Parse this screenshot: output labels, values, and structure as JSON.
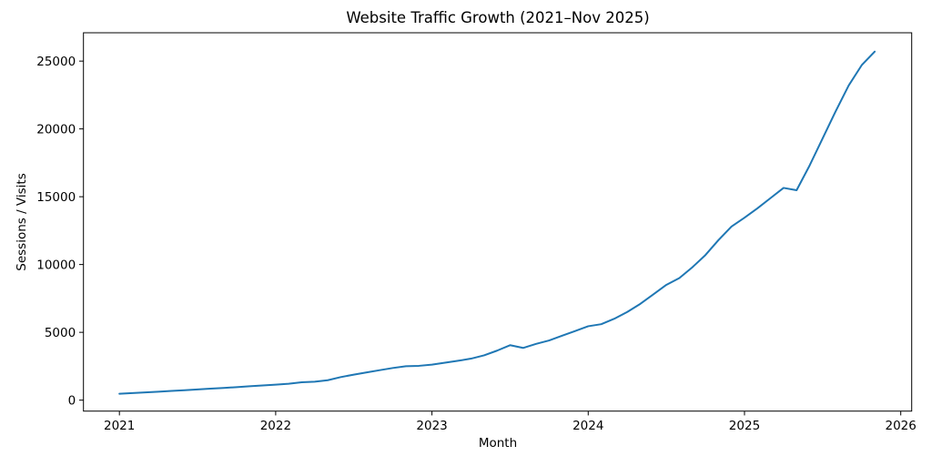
{
  "chart_data": {
    "type": "line",
    "title": "Website Traffic Growth (2021–Nov 2025)",
    "xlabel": "Month",
    "ylabel": "Sessions / Visits",
    "x_tick_values": [
      2021,
      2022,
      2023,
      2024,
      2025,
      2026
    ],
    "x_tick_labels": [
      "2021",
      "2022",
      "2023",
      "2024",
      "2025",
      "2026"
    ],
    "y_tick_values": [
      0,
      5000,
      10000,
      15000,
      20000,
      25000
    ],
    "y_tick_labels": [
      "0",
      "5000",
      "10000",
      "15000",
      "20000",
      "25000"
    ],
    "xlim": [
      2020.77,
      2026.07
    ],
    "ylim": [
      -810,
      27090
    ],
    "grid": false,
    "legend": "none",
    "series": [
      {
        "name": "Sessions / Visits",
        "color": "#1f77b4",
        "months": [
          "2021-01",
          "2021-02",
          "2021-03",
          "2021-04",
          "2021-05",
          "2021-06",
          "2021-07",
          "2021-08",
          "2021-09",
          "2021-10",
          "2021-11",
          "2021-12",
          "2022-01",
          "2022-02",
          "2022-03",
          "2022-04",
          "2022-05",
          "2022-06",
          "2022-07",
          "2022-08",
          "2022-09",
          "2022-10",
          "2022-11",
          "2022-12",
          "2023-01",
          "2023-02",
          "2023-03",
          "2023-04",
          "2023-05",
          "2023-06",
          "2023-07",
          "2023-08",
          "2023-09",
          "2023-10",
          "2023-11",
          "2023-12",
          "2024-01",
          "2024-02",
          "2024-03",
          "2024-04",
          "2024-05",
          "2024-06",
          "2024-07",
          "2024-08",
          "2024-09",
          "2024-10",
          "2024-11",
          "2024-12",
          "2025-01",
          "2025-02",
          "2025-03",
          "2025-04",
          "2025-05",
          "2025-06",
          "2025-07",
          "2025-08",
          "2025-09",
          "2025-10",
          "2025-11"
        ],
        "values": [
          470,
          520,
          570,
          620,
          680,
          730,
          790,
          850,
          900,
          960,
          1020,
          1080,
          1140,
          1210,
          1320,
          1360,
          1470,
          1700,
          1880,
          2050,
          2210,
          2370,
          2500,
          2530,
          2620,
          2760,
          2900,
          3060,
          3300,
          3650,
          4050,
          3850,
          4150,
          4400,
          4750,
          5100,
          5450,
          5600,
          6000,
          6500,
          7100,
          7800,
          8500,
          9000,
          9800,
          10700,
          11800,
          12800,
          13450,
          14150,
          14900,
          15650,
          15480,
          17300,
          19300,
          21300,
          23200,
          24700,
          25700
        ]
      }
    ]
  }
}
